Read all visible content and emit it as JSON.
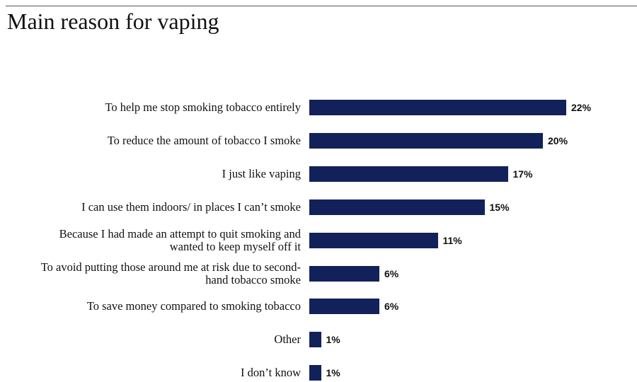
{
  "chart_data": {
    "type": "bar",
    "orientation": "horizontal",
    "title": "Main reason for vaping",
    "categories": [
      "To help me stop smoking tobacco entirely",
      "To reduce the amount of tobacco I smoke",
      "I just like vaping",
      "I can use them indoors/ in places I can’t smoke",
      "Because I had made an attempt to quit smoking and wanted to keep myself off it",
      "To avoid putting those around me at risk due to second-hand tobacco smoke",
      "To save money compared to smoking tobacco",
      "Other",
      "I don’t know"
    ],
    "values": [
      22,
      20,
      17,
      15,
      11,
      6,
      6,
      1,
      1
    ],
    "value_labels": [
      "22%",
      "20%",
      "17%",
      "15%",
      "11%",
      "6%",
      "6%",
      "1%",
      "1%"
    ],
    "color": "#13215a"
  }
}
